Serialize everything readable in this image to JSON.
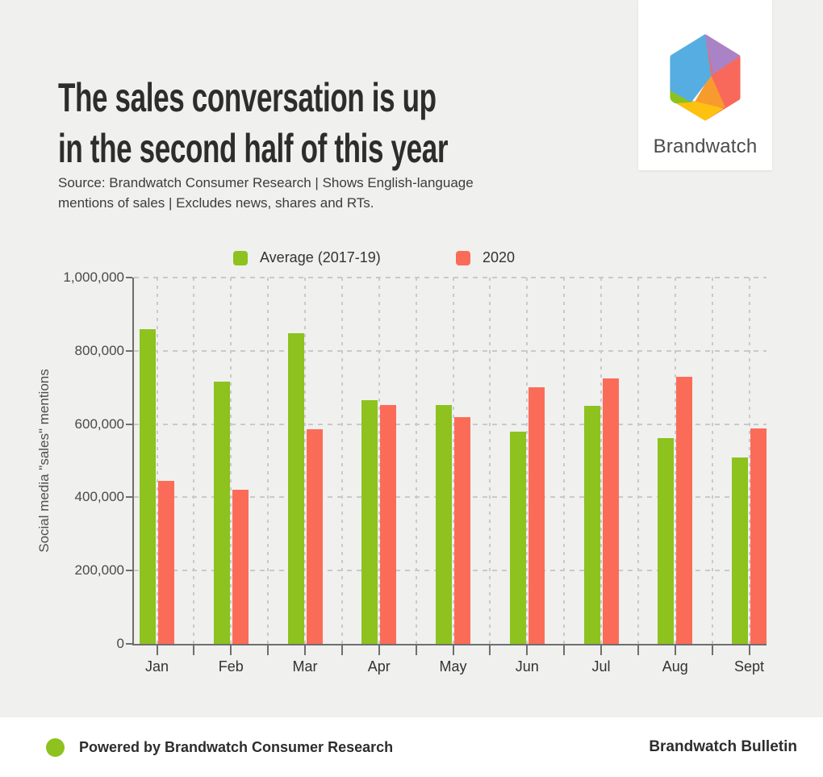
{
  "header": {
    "title_line1": "The sales conversation is up",
    "title_line2": "in the second half of this year",
    "source_line1": "Source: Brandwatch Consumer Research | Shows English-language",
    "source_line2": "mentions of sales | Excludes news, shares and RTs."
  },
  "logo": {
    "brand_name": "Brandwatch",
    "colors": {
      "blue": "#55ade2",
      "purple": "#a983c6",
      "coral": "#f8695b",
      "orange": "#f89b2e",
      "yellow": "#fec110",
      "green": "#8cc21e"
    }
  },
  "legend": {
    "items": [
      {
        "label": "Average (2017-19)",
        "color": "#8dc21f"
      },
      {
        "label": "2020",
        "color": "#fb6c58"
      }
    ]
  },
  "chart_data": {
    "type": "bar",
    "title": "The sales conversation is up in the second half of this year",
    "xlabel": "",
    "ylabel": "Social media \"sales\" mentions",
    "categories": [
      "Jan",
      "Feb",
      "Mar",
      "Apr",
      "May",
      "Jun",
      "Jul",
      "Aug",
      "Sept"
    ],
    "series": [
      {
        "name": "Average (2017-19)",
        "color": "#8dc21f",
        "values": [
          860000,
          715000,
          848000,
          665000,
          651000,
          580000,
          650000,
          561000,
          508000
        ]
      },
      {
        "name": "2020",
        "color": "#fb6c58",
        "values": [
          444000,
          420000,
          585000,
          653000,
          620000,
          701000,
          725000,
          728000,
          589000
        ]
      }
    ],
    "ylim": [
      0,
      1000000
    ],
    "ytick_values": [
      0,
      200000,
      400000,
      600000,
      800000,
      1000000
    ],
    "ytick_labels": [
      "0",
      "200,000",
      "400,000",
      "600,000",
      "800,000",
      "1,000,000"
    ],
    "grid": "dashed horizontal and vertical",
    "legend_position": "top"
  },
  "colors": {
    "background": "#f0f0ee",
    "card": "#ffffff",
    "axis": "#6e6e6e",
    "grid": "#c9c9c9",
    "text_dark": "#2d2d2d"
  },
  "footer": {
    "left_text": "Powered by Brandwatch Consumer Research",
    "right_text": "Brandwatch Bulletin",
    "dot_color": "#8dc21f"
  }
}
